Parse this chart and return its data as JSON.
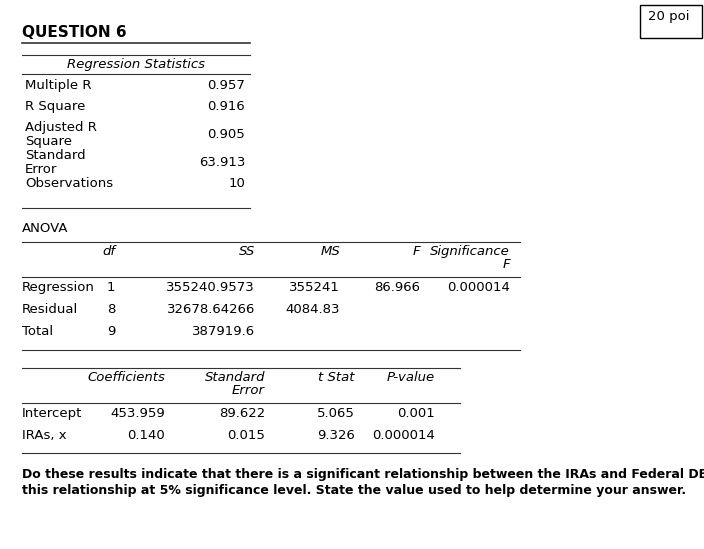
{
  "title": "QUESTION 6",
  "points": "20 poi",
  "bg_color": "#ffffff",
  "reg_stats_header": "Regression Statistics",
  "reg_labels_line1": [
    "Multiple R",
    "R Square",
    "Adjusted R",
    "Standard",
    "Observations"
  ],
  "reg_labels_line2": [
    "",
    "",
    "Square",
    "Error",
    ""
  ],
  "reg_values": [
    "0.957",
    "0.916",
    "0.905",
    "63.913",
    "10"
  ],
  "anova_header": "ANOVA",
  "anova_col_headers_line1": [
    "",
    "df",
    "SS",
    "MS",
    "F",
    "Significance"
  ],
  "anova_col_headers_line2": [
    "",
    "",
    "",
    "",
    "",
    "F"
  ],
  "anova_rows": [
    [
      "Regression",
      "1",
      "355240.9573",
      "355241",
      "86.966",
      "0.000014"
    ],
    [
      "Residual",
      "8",
      "32678.64266",
      "4084.83",
      "",
      ""
    ],
    [
      "Total",
      "9",
      "387919.6",
      "",
      "",
      ""
    ]
  ],
  "coef_col_headers_line1": [
    "",
    "Coefficients",
    "Standard",
    "t Stat",
    "P-value"
  ],
  "coef_col_headers_line2": [
    "",
    "",
    "Error",
    "",
    ""
  ],
  "coef_rows": [
    [
      "Intercept",
      "453.959",
      "89.622",
      "5.065",
      "0.001"
    ],
    [
      "IRAs, x",
      "0.140",
      "0.015",
      "9.326",
      "0.000014"
    ]
  ],
  "footer_line1": "Do these results indicate that there is a significant relationship between the IRAs and Federal DB plans? Test",
  "footer_line2": "this relationship at 5% significance level. State the value used to help determine your answer."
}
